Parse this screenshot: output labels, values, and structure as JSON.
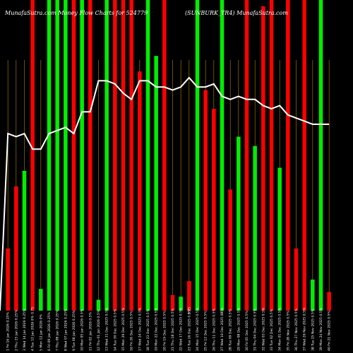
{
  "chart_data": {
    "type": "bar",
    "title_left": "MunafaSutra.com Money Flow Charts for 524779",
    "title_right": "(SUNBURK_TR4) MunafaSutra.com",
    "bar_colors": {
      "up": "#00ee00",
      "down": "#ff0000",
      "line": "#ffffff",
      "grid": "#b8860b"
    },
    "ylim": [
      0,
      100
    ],
    "categories": [
      "1 Fri 16 Jan 2026 0.25%",
      "2 Thu 15 Jan 2026 0.25%",
      "3 Wed 14 Jan 2026 0.25%",
      "4 Tue 13 Jan 2026 0%",
      "5 Mon 12 Jan 2026 0%",
      "6 Fri 09 Jan 2026 0.25%",
      "7 Thu 08 Jan 2026 0.25%",
      "8 Wed 07 Jan 2026 0.25%",
      "9 Tue 06 Jan 2026 0.25%",
      "10 Mon 05 Jan 2026 0.5%",
      "11 Fri 02 Jan 2026 0.5%",
      "12 Thu 01 Jan 2026 0.5%",
      "13 Wed 31 Dec 2025 0.5%",
      "14 Tue 30 Dec 2025 0.5%",
      "15 Mon 29 Dec 2025 0.5%",
      "16 Fri 26 Dec 2025 0.5%",
      "17 Wed 24 Dec 2025 0.5%",
      "18 Tue 23 Dec 2025 0.5%",
      "19 Mon 22 Dec 2025 0.5%",
      "20 Fri 19 Dec 2025 0.5%",
      "21 Thu 18 Dec 2025 0.5%",
      "22 Wed 17 Dec 2025 0.5%",
      "23 Tue 16 Dec 2025 0.5%",
      "24 Mon 15 Dec 2025 0.5%",
      "25 Fri 12 Dec 2025 0.5%",
      "26 Thu 11 Dec 2025 0.5%",
      "27 Wed 10 Dec 2025 0.5%",
      "28 Tue 09 Dec 2025 0.5%",
      "29 Mon 08 Dec 2025 0.5%",
      "30 Fri 05 Dec 2025 0.5%",
      "31 Thu 04 Dec 2025 0.5%",
      "32 Wed 03 Dec 2025 0.5%",
      "33 Tue 02 Dec 2025 0.5%",
      "34 Mon 01 Dec 2025 0.5%",
      "35 Fri 28 Nov 2025 0.5%",
      "36 Thu 27 Nov 2025 0.5%",
      "37 Wed 26 Nov 2025 0.5%",
      "38 Tue 25 Nov 2025 0.5%",
      "39 Mon 24 Nov 2025 0.5%",
      "40 Fri 21 Nov 2025 0.5%"
    ],
    "bars": [
      {
        "dir": "down",
        "value": 20
      },
      {
        "dir": "down",
        "value": 40
      },
      {
        "dir": "up",
        "value": 45
      },
      {
        "dir": "down",
        "value": 100
      },
      {
        "dir": "up",
        "value": 7
      },
      {
        "dir": "up",
        "value": 100
      },
      {
        "dir": "up",
        "value": 100
      },
      {
        "dir": "up",
        "value": 100
      },
      {
        "dir": "down",
        "value": 100
      },
      {
        "dir": "up",
        "value": 100
      },
      {
        "dir": "down",
        "value": 100
      },
      {
        "dir": "up",
        "value": 3.5
      },
      {
        "dir": "up",
        "value": 100
      },
      {
        "dir": "down",
        "value": 100
      },
      {
        "dir": "down",
        "value": 100
      },
      {
        "dir": "down",
        "value": 100
      },
      {
        "dir": "down",
        "value": 77
      },
      {
        "dir": "up",
        "value": 100
      },
      {
        "dir": "up",
        "value": 82
      },
      {
        "dir": "down",
        "value": 100
      },
      {
        "dir": "down",
        "value": 5
      },
      {
        "dir": "up",
        "value": 4.5
      },
      {
        "dir": "down",
        "value": 9.5
      },
      {
        "dir": "up",
        "value": 100
      },
      {
        "dir": "down",
        "value": 71
      },
      {
        "dir": "down",
        "value": 65
      },
      {
        "dir": "up",
        "value": 100
      },
      {
        "dir": "down",
        "value": 39
      },
      {
        "dir": "up",
        "value": 56
      },
      {
        "dir": "down",
        "value": 100
      },
      {
        "dir": "up",
        "value": 53
      },
      {
        "dir": "down",
        "value": 98
      },
      {
        "dir": "down",
        "value": 100
      },
      {
        "dir": "up",
        "value": 46
      },
      {
        "dir": "down",
        "value": 100
      },
      {
        "dir": "down",
        "value": 20
      },
      {
        "dir": "down",
        "value": 100
      },
      {
        "dir": "up",
        "value": 10
      },
      {
        "dir": "up",
        "value": 100
      },
      {
        "dir": "down",
        "value": 6
      }
    ],
    "line": [
      57,
      56,
      57,
      52,
      52,
      57,
      58,
      59,
      57,
      64,
      64,
      74,
      74,
      73,
      70,
      68,
      74,
      74,
      72,
      72,
      71,
      72,
      75,
      72,
      72,
      73,
      69,
      68,
      69,
      68,
      68,
      66,
      65,
      66,
      63,
      62,
      61,
      60,
      60,
      60
    ],
    "axis_marker_labels": [
      {
        "index": 3,
        "text": "0.75"
      },
      {
        "index": 22,
        "text": "0.75"
      },
      {
        "index": 26,
        "text": "0"
      }
    ]
  }
}
